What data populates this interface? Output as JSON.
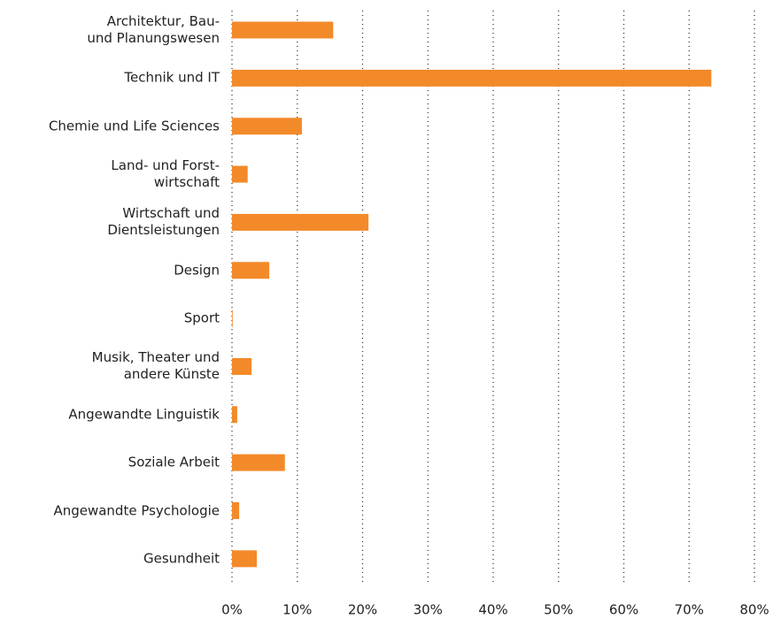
{
  "chart_data": {
    "type": "barh",
    "categories": [
      "Architektur, Bau-\nund Planungswesen",
      "Technik und IT",
      "Chemie und Life Sciences",
      "Land- und Forst-\nwirtschaft",
      "Wirtschaft und\nDientsleistungen",
      "Design",
      "Sport",
      "Musik, Theater und\nandere Künste",
      "Angewandte Linguistik",
      "Soziale Arbeit",
      "Angewandte Psychologie",
      "Gesundheit"
    ],
    "values": [
      15.5,
      73.4,
      10.7,
      2.4,
      20.9,
      5.7,
      0.1,
      3.0,
      0.8,
      8.1,
      1.1,
      3.8
    ],
    "color": "#f38a2a",
    "xlim": [
      0,
      80
    ],
    "xticks": [
      {
        "value": 0,
        "label": "0%"
      },
      {
        "value": 10,
        "label": "10%"
      },
      {
        "value": 20,
        "label": "20%"
      },
      {
        "value": 30,
        "label": "30%"
      },
      {
        "value": 40,
        "label": "40%"
      },
      {
        "value": 50,
        "label": "50%"
      },
      {
        "value": 60,
        "label": "60%"
      },
      {
        "value": 70,
        "label": "70%"
      },
      {
        "value": 80,
        "label": "80%"
      }
    ],
    "grid": true
  }
}
